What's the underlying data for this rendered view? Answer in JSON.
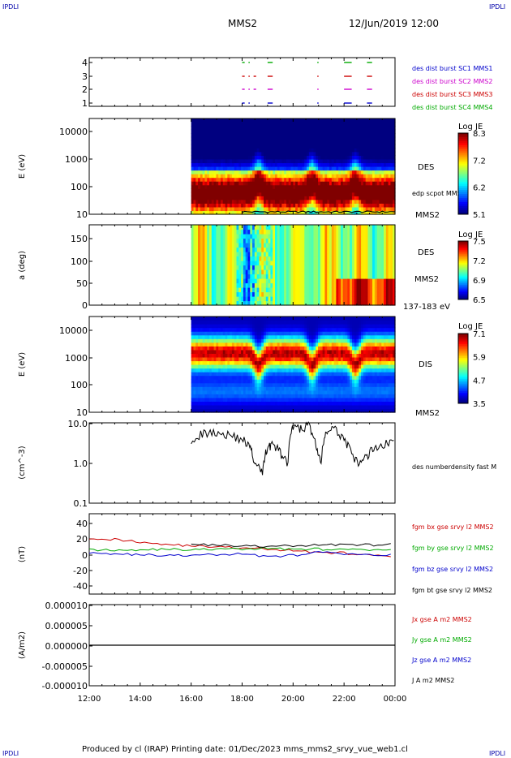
{
  "corner_label": "IPDLI",
  "header": {
    "spacecraft": "MMS2",
    "datetime": "12/Jun/2019 12:00"
  },
  "footer": "Produced by cl (IRAP)   Printing date: 01/Dec/2023   mms_mms2_srvy_vue_web1.cl",
  "time_axis": [
    "12:00",
    "14:00",
    "16:00",
    "18:00",
    "20:00",
    "22:00",
    "00:00"
  ],
  "colors": {
    "sc1": "#0000cc",
    "sc2": "#cc00cc",
    "sc3": "#cc0000",
    "sc4": "#00aa00",
    "black": "#000000"
  },
  "chart_data": [
    {
      "type": "scatter",
      "panel": "burst",
      "y_ticks": [
        "4",
        "3",
        "2",
        "1"
      ],
      "series": [
        {
          "name": "des dist burst SC1 MMS1",
          "y": 1,
          "color": "#0000cc",
          "segments": [
            [
              18.0,
              18.1
            ],
            [
              18.25,
              18.3
            ],
            [
              19.0,
              19.2
            ],
            [
              20.95,
              21.0
            ],
            [
              22.0,
              22.3
            ],
            [
              22.9,
              23.1
            ]
          ]
        },
        {
          "name": "des dist burst SC2 MMS2",
          "y": 2,
          "color": "#cc00cc",
          "segments": [
            [
              18.0,
              18.1
            ],
            [
              18.25,
              18.3
            ],
            [
              18.45,
              18.55
            ],
            [
              19.0,
              19.2
            ],
            [
              20.95,
              21.0
            ],
            [
              22.0,
              22.3
            ],
            [
              22.9,
              23.1
            ]
          ]
        },
        {
          "name": "des dist burst SC3 MMS3",
          "y": 3,
          "color": "#cc0000",
          "segments": [
            [
              18.0,
              18.1
            ],
            [
              18.25,
              18.3
            ],
            [
              18.45,
              18.55
            ],
            [
              19.0,
              19.2
            ],
            [
              20.95,
              21.0
            ],
            [
              22.0,
              22.3
            ],
            [
              22.9,
              23.1
            ]
          ]
        },
        {
          "name": "des dist burst SC4 MMS4",
          "y": 4,
          "color": "#00aa00",
          "segments": [
            [
              18.0,
              18.1
            ],
            [
              18.25,
              18.3
            ],
            [
              19.0,
              19.2
            ],
            [
              20.95,
              21.0
            ],
            [
              22.0,
              22.3
            ],
            [
              22.9,
              23.1
            ]
          ]
        }
      ]
    },
    {
      "type": "heatmap",
      "panel": "des_energy",
      "ylabel": "E (eV)",
      "y_ticks": [
        "10000",
        "1000",
        "100",
        "10"
      ],
      "data_start_time": "16:00",
      "label": "DES",
      "overlay_label": "edp scpot MMS2",
      "bottom_label": "MMS2",
      "colorbar": {
        "title": "Log JE",
        "ticks": [
          "8.3",
          "7.2",
          "6.2",
          "5.1"
        ]
      }
    },
    {
      "type": "heatmap",
      "panel": "des_pitch",
      "ylabel": "a (deg)",
      "y_ticks": [
        "150",
        "100",
        "50",
        "0"
      ],
      "data_start_time": "16:00",
      "label": "DES",
      "sub_label": "MMS2",
      "energy_band": "137-183 eV",
      "colorbar": {
        "title": "Log JE",
        "ticks": [
          "7.5",
          "7.2",
          "6.9",
          "6.5"
        ]
      }
    },
    {
      "type": "heatmap",
      "panel": "dis_energy",
      "ylabel": "E (eV)",
      "y_ticks": [
        "10000",
        "1000",
        "100",
        "10"
      ],
      "data_start_time": "16:00",
      "label": "DIS",
      "bottom_label": "MMS2",
      "colorbar": {
        "title": "Log JE",
        "ticks": [
          "7.1",
          "5.9",
          "4.7",
          "3.5"
        ]
      }
    },
    {
      "type": "line",
      "panel": "density",
      "ylabel": "(cm^-3)",
      "y_ticks": [
        "10.0",
        "1.0",
        "0.1"
      ],
      "ylim": [
        0.1,
        10
      ],
      "yscale": "log",
      "series": [
        {
          "name": "des numberdensity fast M",
          "color": "#000000",
          "x": [
            16.0,
            16.5,
            17.0,
            17.5,
            18.0,
            18.3,
            18.5,
            18.8,
            19.0,
            19.2,
            19.5,
            19.8,
            20.0,
            20.3,
            20.6,
            20.9,
            21.1,
            21.3,
            21.6,
            22.0,
            22.3,
            22.6,
            22.9,
            23.2,
            23.6,
            24.0
          ],
          "y": [
            4.0,
            5.5,
            6.0,
            5.0,
            4.0,
            2.5,
            0.9,
            0.6,
            2.5,
            3.0,
            1.8,
            0.9,
            8.0,
            7.0,
            9.0,
            2.5,
            0.8,
            6.0,
            7.0,
            4.0,
            1.5,
            0.9,
            1.5,
            2.5,
            3.0,
            3.5
          ]
        }
      ]
    },
    {
      "type": "line",
      "panel": "fgm",
      "ylabel": "(nT)",
      "y_ticks": [
        "40",
        "20",
        "0",
        "-20",
        "-40"
      ],
      "ylim": [
        -50,
        50
      ],
      "series": [
        {
          "name": "fgm bx gse srvy l2 MMS2",
          "color": "#cc0000",
          "x": [
            12,
            13,
            14,
            15,
            16,
            17,
            18,
            19,
            20,
            21,
            22,
            23,
            24
          ],
          "y": [
            20,
            18,
            15,
            12,
            10,
            9,
            7,
            6,
            4,
            2,
            1,
            -2,
            -4
          ]
        },
        {
          "name": "fgm by gse srvy l2 MMS2",
          "color": "#00aa00",
          "x": [
            12,
            13,
            14,
            15,
            16,
            17,
            18,
            19,
            20,
            21,
            22,
            23,
            24
          ],
          "y": [
            5,
            5,
            5,
            6,
            5,
            6,
            6,
            7,
            6,
            6,
            5,
            5,
            4
          ]
        },
        {
          "name": "fgm bz gse srvy l2 MMS2",
          "color": "#0000cc",
          "x": [
            12,
            13,
            14,
            15,
            16,
            17,
            18,
            19,
            20,
            21,
            22,
            23,
            24
          ],
          "y": [
            2,
            0,
            -1,
            -2,
            -2,
            -1,
            0,
            -3,
            -2,
            2,
            0,
            -2,
            0
          ]
        },
        {
          "name": "fgm bt gse srvy l2 MMS2",
          "color": "#000000",
          "x": [
            16,
            17,
            18,
            19,
            20,
            21,
            22,
            23,
            24
          ],
          "y": [
            12,
            11,
            10,
            9,
            10,
            11,
            12,
            11,
            12
          ]
        }
      ]
    },
    {
      "type": "line",
      "panel": "current",
      "ylabel": "(A/m2)",
      "y_ticks": [
        "0.000010",
        "0.000005",
        "0.000000",
        "-0.000005",
        "-0.000010"
      ],
      "ylim": [
        -1e-05,
        1e-05
      ],
      "series": [
        {
          "name": "Jx gse A m2 MMS2",
          "color": "#cc0000",
          "x": [
            12,
            24
          ],
          "y": [
            0,
            0
          ]
        },
        {
          "name": "Jy gse A m2 MMS2",
          "color": "#00aa00",
          "x": [
            12,
            24
          ],
          "y": [
            0,
            0
          ]
        },
        {
          "name": "Jz gse A m2 MMS2",
          "color": "#0000cc",
          "x": [
            12,
            24
          ],
          "y": [
            0,
            0
          ]
        },
        {
          "name": "J A m2 MMS2",
          "color": "#000000",
          "x": [
            12,
            24
          ],
          "y": [
            0,
            0
          ]
        }
      ]
    }
  ]
}
